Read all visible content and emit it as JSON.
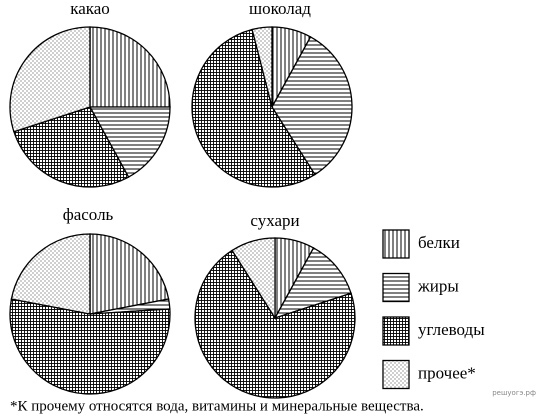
{
  "chart_data": [
    {
      "type": "pie",
      "title": "какао",
      "values": [
        25,
        17,
        28,
        30
      ]
    },
    {
      "type": "pie",
      "title": "шоколад",
      "values": [
        8,
        33,
        55,
        4
      ]
    },
    {
      "type": "pie",
      "title": "фасоль",
      "values": [
        22,
        2,
        54,
        22
      ]
    },
    {
      "type": "pie",
      "title": "сухари",
      "values": [
        8,
        12,
        71,
        9
      ]
    }
  ],
  "legend": {
    "labels": [
      "белки",
      "жиры",
      "углеводы",
      "прочее*"
    ],
    "patterns": [
      "vertical",
      "horizontal",
      "grid",
      "dots"
    ]
  },
  "footnote": "*К прочему относятся вода, витамины и минеральные вещества.",
  "watermark": "решуогэ.рф"
}
